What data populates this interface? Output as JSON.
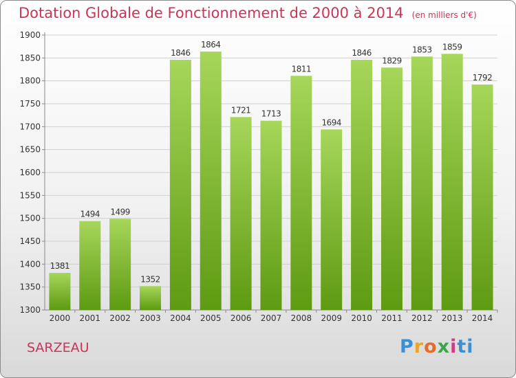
{
  "header": {
    "title": "Dotation Globale de Fonctionnement de 2000 à 2014",
    "unit": "(en milliers d'€)"
  },
  "footer": {
    "city": "SARZEAU",
    "logo": "Proxiti"
  },
  "colors": {
    "title": "#cc3355",
    "bar_top": "#a6d65a",
    "bar_bottom": "#5e9a12",
    "grid": "#cfcfcf"
  },
  "chart_data": {
    "type": "bar",
    "title": "Dotation Globale de Fonctionnement de 2000 à 2014",
    "subtitle": "(en milliers d'€)",
    "xlabel": "",
    "ylabel": "",
    "categories": [
      "2000",
      "2001",
      "2002",
      "2003",
      "2004",
      "2005",
      "2006",
      "2007",
      "2008",
      "2009",
      "2010",
      "2011",
      "2012",
      "2013",
      "2014"
    ],
    "values": [
      1381,
      1494,
      1499,
      1352,
      1846,
      1864,
      1721,
      1713,
      1811,
      1694,
      1846,
      1829,
      1853,
      1859,
      1792
    ],
    "ylim": [
      1300,
      1900
    ],
    "yticks": [
      1300,
      1350,
      1400,
      1450,
      1500,
      1550,
      1600,
      1650,
      1700,
      1750,
      1800,
      1850,
      1900
    ],
    "grid": true,
    "data_labels": true
  }
}
